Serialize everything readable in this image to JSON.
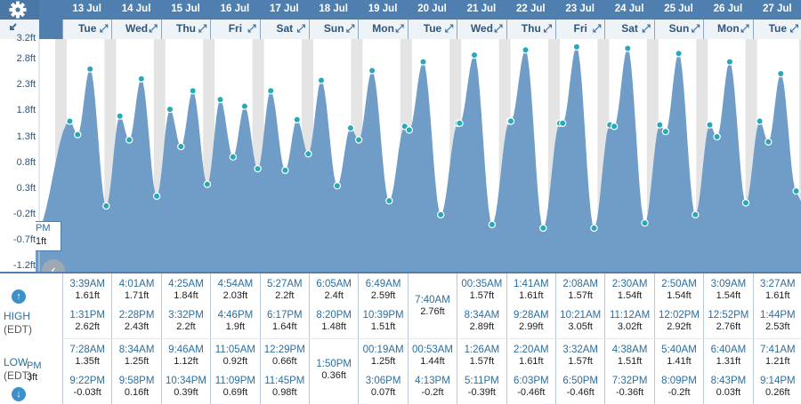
{
  "days": [
    {
      "date": "13 Jul",
      "wd": "Tue"
    },
    {
      "date": "14 Jul",
      "wd": "Wed"
    },
    {
      "date": "15 Jul",
      "wd": "Thu"
    },
    {
      "date": "16 Jul",
      "wd": "Fri"
    },
    {
      "date": "17 Jul",
      "wd": "Sat"
    },
    {
      "date": "18 Jul",
      "wd": "Sun"
    },
    {
      "date": "19 Jul",
      "wd": "Mon"
    },
    {
      "date": "20 Jul",
      "wd": "Tue"
    },
    {
      "date": "21 Jul",
      "wd": "Wed"
    },
    {
      "date": "22 Jul",
      "wd": "Thu"
    },
    {
      "date": "23 Jul",
      "wd": "Fri"
    },
    {
      "date": "24 Jul",
      "wd": "Sat"
    },
    {
      "date": "25 Jul",
      "wd": "Sun"
    },
    {
      "date": "26 Jul",
      "wd": "Mon"
    },
    {
      "date": "27 Jul",
      "wd": "Tue"
    }
  ],
  "chart_data": {
    "type": "area",
    "y_ticks": [
      "3.2ft",
      "2.8ft",
      "2.3ft",
      "1.8ft",
      "1.3ft",
      "0.8ft",
      "0.3ft",
      "-0.2ft",
      "-0.7ft",
      "-1.2ft"
    ],
    "ylim": [
      -1.2,
      3.2
    ],
    "partial_label": {
      "time": "PM",
      "height": "1ft"
    },
    "tides": [
      {
        "day": 0,
        "type": "H",
        "time": "3:39AM",
        "h": 1.61
      },
      {
        "day": 0,
        "type": "L",
        "time": "7:28AM",
        "h": 1.35
      },
      {
        "day": 0,
        "type": "H",
        "time": "1:31PM",
        "h": 2.62
      },
      {
        "day": 0,
        "type": "L",
        "time": "9:22PM",
        "h": -0.03
      },
      {
        "day": 1,
        "type": "H",
        "time": "4:01AM",
        "h": 1.71
      },
      {
        "day": 1,
        "type": "L",
        "time": "8:34AM",
        "h": 1.25
      },
      {
        "day": 1,
        "type": "H",
        "time": "2:28PM",
        "h": 2.43
      },
      {
        "day": 1,
        "type": "L",
        "time": "9:58PM",
        "h": 0.16
      },
      {
        "day": 2,
        "type": "H",
        "time": "4:25AM",
        "h": 1.84
      },
      {
        "day": 2,
        "type": "L",
        "time": "9:46AM",
        "h": 1.12
      },
      {
        "day": 2,
        "type": "H",
        "time": "3:32PM",
        "h": 2.2
      },
      {
        "day": 2,
        "type": "L",
        "time": "10:34PM",
        "h": 0.39
      },
      {
        "day": 3,
        "type": "H",
        "time": "4:54AM",
        "h": 2.03
      },
      {
        "day": 3,
        "type": "L",
        "time": "11:05AM",
        "h": 0.92
      },
      {
        "day": 3,
        "type": "H",
        "time": "4:46PM",
        "h": 1.9
      },
      {
        "day": 3,
        "type": "L",
        "time": "11:09PM",
        "h": 0.69
      },
      {
        "day": 4,
        "type": "H",
        "time": "5:27AM",
        "h": 2.2
      },
      {
        "day": 4,
        "type": "L",
        "time": "12:29PM",
        "h": 0.66
      },
      {
        "day": 4,
        "type": "H",
        "time": "6:17PM",
        "h": 1.64
      },
      {
        "day": 4,
        "type": "L",
        "time": "11:45PM",
        "h": 0.98
      },
      {
        "day": 5,
        "type": "H",
        "time": "6:05AM",
        "h": 2.4
      },
      {
        "day": 5,
        "type": "L",
        "time": "1:50PM",
        "h": 0.36
      },
      {
        "day": 5,
        "type": "H",
        "time": "8:20PM",
        "h": 1.48
      },
      {
        "day": 6,
        "type": "L",
        "time": "00:19AM",
        "h": 1.25
      },
      {
        "day": 6,
        "type": "H",
        "time": "6:49AM",
        "h": 2.59
      },
      {
        "day": 6,
        "type": "L",
        "time": "3:06PM",
        "h": 0.07
      },
      {
        "day": 6,
        "type": "H",
        "time": "10:39PM",
        "h": 1.51
      },
      {
        "day": 7,
        "type": "L",
        "time": "00:53AM",
        "h": 1.44
      },
      {
        "day": 7,
        "type": "H",
        "time": "7:40AM",
        "h": 2.76
      },
      {
        "day": 7,
        "type": "L",
        "time": "4:13PM",
        "h": -0.2
      },
      {
        "day": 8,
        "type": "H",
        "time": "00:35AM",
        "h": 1.57
      },
      {
        "day": 8,
        "type": "L",
        "time": "1:26AM",
        "h": 1.57
      },
      {
        "day": 8,
        "type": "H",
        "time": "8:34AM",
        "h": 2.89
      },
      {
        "day": 8,
        "type": "L",
        "time": "5:11PM",
        "h": -0.39
      },
      {
        "day": 9,
        "type": "H",
        "time": "1:41AM",
        "h": 1.61
      },
      {
        "day": 9,
        "type": "L",
        "time": "2:20AM",
        "h": 1.61
      },
      {
        "day": 9,
        "type": "H",
        "time": "9:28AM",
        "h": 2.99
      },
      {
        "day": 9,
        "type": "L",
        "time": "6:03PM",
        "h": -0.46
      },
      {
        "day": 10,
        "type": "H",
        "time": "2:08AM",
        "h": 1.57
      },
      {
        "day": 10,
        "type": "L",
        "time": "3:32AM",
        "h": 1.57
      },
      {
        "day": 10,
        "type": "H",
        "time": "10:21AM",
        "h": 3.05
      },
      {
        "day": 10,
        "type": "L",
        "time": "6:50PM",
        "h": -0.46
      },
      {
        "day": 11,
        "type": "H",
        "time": "2:30AM",
        "h": 1.54
      },
      {
        "day": 11,
        "type": "L",
        "time": "4:38AM",
        "h": 1.51
      },
      {
        "day": 11,
        "type": "H",
        "time": "11:12AM",
        "h": 3.02
      },
      {
        "day": 11,
        "type": "L",
        "time": "7:32PM",
        "h": -0.36
      },
      {
        "day": 12,
        "type": "H",
        "time": "2:50AM",
        "h": 1.54
      },
      {
        "day": 12,
        "type": "L",
        "time": "5:40AM",
        "h": 1.41
      },
      {
        "day": 12,
        "type": "H",
        "time": "12:02PM",
        "h": 2.92
      },
      {
        "day": 12,
        "type": "L",
        "time": "8:09PM",
        "h": -0.2
      },
      {
        "day": 13,
        "type": "H",
        "time": "3:09AM",
        "h": 1.54
      },
      {
        "day": 13,
        "type": "L",
        "time": "6:40AM",
        "h": 1.31
      },
      {
        "day": 13,
        "type": "H",
        "time": "12:52PM",
        "h": 2.76
      },
      {
        "day": 13,
        "type": "L",
        "time": "8:43PM",
        "h": 0.03
      },
      {
        "day": 14,
        "type": "H",
        "time": "3:27AM",
        "h": 1.61
      },
      {
        "day": 14,
        "type": "L",
        "time": "7:41AM",
        "h": 1.21
      },
      {
        "day": 14,
        "type": "H",
        "time": "1:44PM",
        "h": 2.53
      },
      {
        "day": 14,
        "type": "L",
        "time": "9:14PM",
        "h": 0.26
      }
    ]
  },
  "table": {
    "high_label": "HIGH",
    "low_label": "LOW",
    "tz": "(EDT)",
    "up_icon": "arrow-up-icon",
    "down_icon": "arrow-down-icon",
    "partial_high": {
      "time": "PM",
      "h": "3ft"
    },
    "cols": [
      {
        "high": [
          [
            "3:39AM",
            "1.61ft"
          ],
          [
            "1:31PM",
            "2.62ft"
          ]
        ],
        "low": [
          [
            "7:28AM",
            "1.35ft"
          ],
          [
            "9:22PM",
            "-0.03ft"
          ]
        ]
      },
      {
        "high": [
          [
            "4:01AM",
            "1.71ft"
          ],
          [
            "2:28PM",
            "2.43ft"
          ]
        ],
        "low": [
          [
            "8:34AM",
            "1.25ft"
          ],
          [
            "9:58PM",
            "0.16ft"
          ]
        ]
      },
      {
        "high": [
          [
            "4:25AM",
            "1.84ft"
          ],
          [
            "3:32PM",
            "2.2ft"
          ]
        ],
        "low": [
          [
            "9:46AM",
            "1.12ft"
          ],
          [
            "10:34PM",
            "0.39ft"
          ]
        ]
      },
      {
        "high": [
          [
            "4:54AM",
            "2.03ft"
          ],
          [
            "4:46PM",
            "1.9ft"
          ]
        ],
        "low": [
          [
            "11:05AM",
            "0.92ft"
          ],
          [
            "11:09PM",
            "0.69ft"
          ]
        ]
      },
      {
        "high": [
          [
            "5:27AM",
            "2.2ft"
          ],
          [
            "6:17PM",
            "1.64ft"
          ]
        ],
        "low": [
          [
            "12:29PM",
            "0.66ft"
          ],
          [
            "11:45PM",
            "0.98ft"
          ]
        ]
      },
      {
        "high": [
          [
            "6:05AM",
            "2.4ft"
          ],
          [
            "8:20PM",
            "1.48ft"
          ]
        ],
        "low": [
          [
            "1:50PM",
            "0.36ft"
          ]
        ]
      },
      {
        "high": [
          [
            "6:49AM",
            "2.59ft"
          ],
          [
            "10:39PM",
            "1.51ft"
          ]
        ],
        "low": [
          [
            "00:19AM",
            "1.25ft"
          ],
          [
            "3:06PM",
            "0.07ft"
          ]
        ]
      },
      {
        "high": [
          [
            "7:40AM",
            "2.76ft"
          ]
        ],
        "low": [
          [
            "00:53AM",
            "1.44ft"
          ],
          [
            "4:13PM",
            "-0.2ft"
          ]
        ]
      },
      {
        "high": [
          [
            "00:35AM",
            "1.57ft"
          ],
          [
            "8:34AM",
            "2.89ft"
          ]
        ],
        "low": [
          [
            "1:26AM",
            "1.57ft"
          ],
          [
            "5:11PM",
            "-0.39ft"
          ]
        ]
      },
      {
        "high": [
          [
            "1:41AM",
            "1.61ft"
          ],
          [
            "9:28AM",
            "2.99ft"
          ]
        ],
        "low": [
          [
            "2:20AM",
            "1.61ft"
          ],
          [
            "6:03PM",
            "-0.46ft"
          ]
        ]
      },
      {
        "high": [
          [
            "2:08AM",
            "1.57ft"
          ],
          [
            "10:21AM",
            "3.05ft"
          ]
        ],
        "low": [
          [
            "3:32AM",
            "1.57ft"
          ],
          [
            "6:50PM",
            "-0.46ft"
          ]
        ]
      },
      {
        "high": [
          [
            "2:30AM",
            "1.54ft"
          ],
          [
            "11:12AM",
            "3.02ft"
          ]
        ],
        "low": [
          [
            "4:38AM",
            "1.51ft"
          ],
          [
            "7:32PM",
            "-0.36ft"
          ]
        ]
      },
      {
        "high": [
          [
            "2:50AM",
            "1.54ft"
          ],
          [
            "12:02PM",
            "2.92ft"
          ]
        ],
        "low": [
          [
            "5:40AM",
            "1.41ft"
          ],
          [
            "8:09PM",
            "-0.2ft"
          ]
        ]
      },
      {
        "high": [
          [
            "3:09AM",
            "1.54ft"
          ],
          [
            "12:52PM",
            "2.76ft"
          ]
        ],
        "low": [
          [
            "6:40AM",
            "1.31ft"
          ],
          [
            "8:43PM",
            "0.03ft"
          ]
        ]
      },
      {
        "high": [
          [
            "3:27AM",
            "1.61ft"
          ],
          [
            "1:44PM",
            "2.53ft"
          ]
        ],
        "low": [
          [
            "7:41AM",
            "1.21ft"
          ],
          [
            "9:14PM",
            "0.26ft"
          ]
        ]
      }
    ]
  },
  "colors": {
    "fill": "#6f9dc7",
    "night": "#e4e4e4",
    "header": "#4f7fae",
    "point": "#27a9b7"
  }
}
